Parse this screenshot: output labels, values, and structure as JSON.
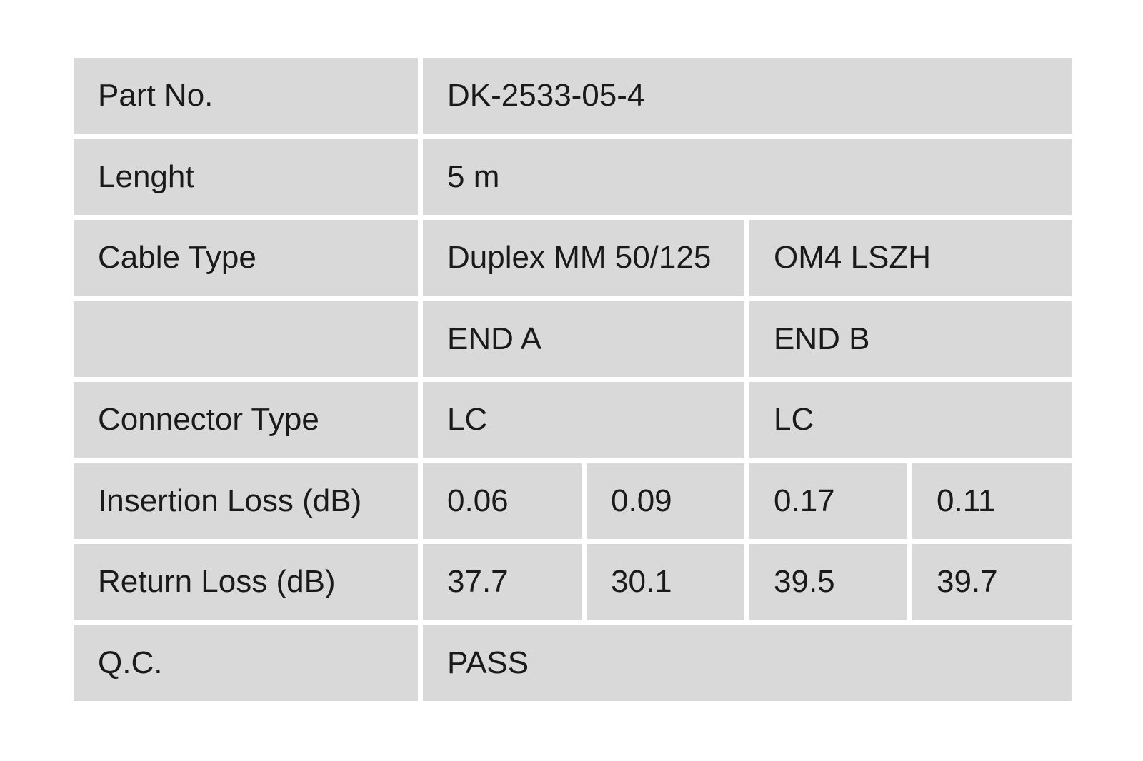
{
  "colors": {
    "page_background": "#ffffff",
    "cell_background": "#d9d9d9",
    "text": "#1a1a1a"
  },
  "table": {
    "rows": [
      {
        "label": "Part No.",
        "cells": [
          {
            "text": "DK-2533-05-4"
          }
        ]
      },
      {
        "label": "Lenght",
        "cells": [
          {
            "text": "5 m"
          }
        ]
      },
      {
        "label": "Cable Type",
        "cells": [
          {
            "text": "Duplex MM 50/125"
          },
          {
            "text": "OM4 LSZH"
          }
        ]
      },
      {
        "label": "",
        "cells": [
          {
            "text": "END A"
          },
          {
            "text": "END B"
          }
        ]
      },
      {
        "label": "Connector Type",
        "cells": [
          {
            "text": "LC"
          },
          {
            "text": "LC"
          }
        ]
      },
      {
        "label": "Insertion Loss (dB)",
        "cells": [
          {
            "text": "0.06"
          },
          {
            "text": "0.09"
          },
          {
            "text": "0.17"
          },
          {
            "text": "0.11"
          }
        ]
      },
      {
        "label": "Return Loss (dB)",
        "cells": [
          {
            "text": "37.7"
          },
          {
            "text": "30.1"
          },
          {
            "text": "39.5"
          },
          {
            "text": "39.7"
          }
        ]
      },
      {
        "label": "Q.C.",
        "cells": [
          {
            "text": "PASS"
          }
        ]
      }
    ]
  }
}
